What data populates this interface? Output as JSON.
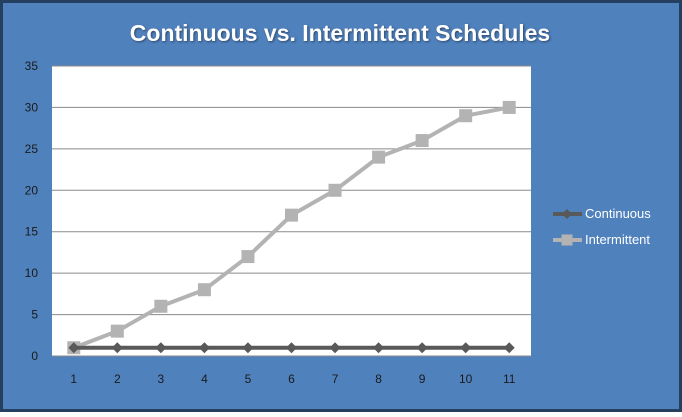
{
  "chart_data": {
    "type": "line",
    "title": "Continuous vs. Intermittent Schedules",
    "xlabel": "",
    "ylabel": "",
    "x": [
      1,
      2,
      3,
      4,
      5,
      6,
      7,
      8,
      9,
      10,
      11
    ],
    "yticks": [
      0,
      5,
      10,
      15,
      20,
      25,
      30,
      35
    ],
    "ylim": [
      0,
      35
    ],
    "grid": true,
    "legend_position": "right",
    "series": [
      {
        "name": "Continuous",
        "values": [
          1,
          1,
          1,
          1,
          1,
          1,
          1,
          1,
          1,
          1,
          1
        ],
        "color": "#595959",
        "marker": "diamond"
      },
      {
        "name": "Intermittent",
        "values": [
          1,
          3,
          6,
          8,
          12,
          17,
          20,
          24,
          26,
          29,
          30
        ],
        "color": "#b3b3b3",
        "marker": "square"
      }
    ]
  },
  "colors": {
    "background": "#4f81bd",
    "border": "#243f60",
    "plot_background": "#ffffff",
    "gridline": "#8a8a8a",
    "axis_text": "#1a1a1a",
    "title_text": "#ffffff",
    "legend_text": "#ffffff"
  }
}
